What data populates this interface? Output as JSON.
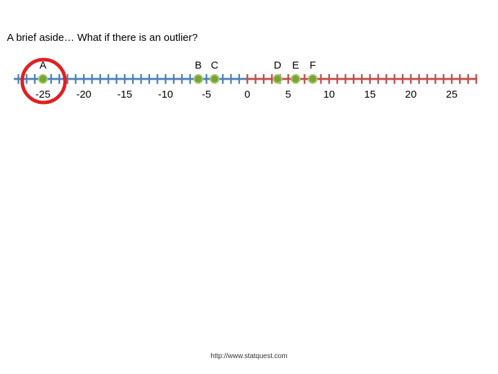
{
  "slide": {
    "title": "A brief aside… What if there is an outlier?",
    "footer_url": "http://www.statquest.com"
  },
  "number_line": {
    "range": [
      -28,
      28
    ],
    "tick_step": 1,
    "color_split_at": 0,
    "negative_color": "#4f81bd",
    "positive_color": "#c0504d",
    "tick_labels": [
      {
        "value": -25,
        "label": "-25"
      },
      {
        "value": -20,
        "label": "-20"
      },
      {
        "value": -15,
        "label": "-15"
      },
      {
        "value": -10,
        "label": "-10"
      },
      {
        "value": -5,
        "label": "-5"
      },
      {
        "value": 0,
        "label": "0"
      },
      {
        "value": 5,
        "label": "5"
      },
      {
        "value": 10,
        "label": "10"
      },
      {
        "value": 15,
        "label": "15"
      },
      {
        "value": 20,
        "label": "20"
      },
      {
        "value": 25,
        "label": "25"
      }
    ]
  },
  "points": [
    {
      "label": "A",
      "value": -25
    },
    {
      "label": "B",
      "value": -6
    },
    {
      "label": "C",
      "value": -4
    },
    {
      "label": "D",
      "value": 3.7
    },
    {
      "label": "E",
      "value": 5.9
    },
    {
      "label": "F",
      "value": 8
    }
  ],
  "point_style": {
    "fill": "#77a33a",
    "stroke": "#a8c96c"
  },
  "outlier": {
    "label": "A",
    "circle_color": "#e02020"
  }
}
